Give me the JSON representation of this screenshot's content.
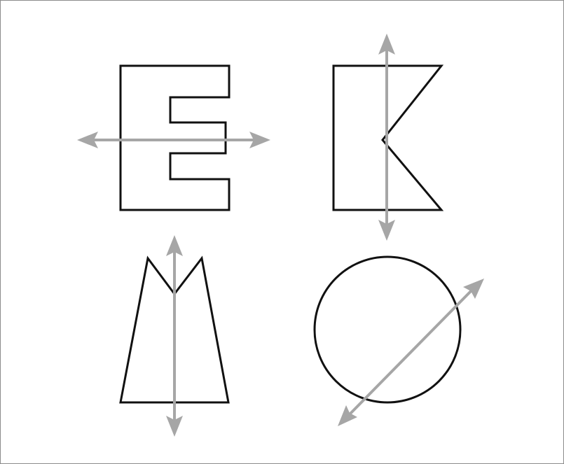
{
  "figure": {
    "description_colors": {
      "background": "#ffffff",
      "frame": "#8c8c8c",
      "shape_stroke": "#111111",
      "axis_line": "#a6a6a6"
    },
    "shapes": [
      {
        "id": "shape-e",
        "kind": "e-shape",
        "axis_orientation": "horizontal"
      },
      {
        "id": "shape-k",
        "kind": "k-shape",
        "axis_orientation": "vertical"
      },
      {
        "id": "shape-m",
        "kind": "m-shape",
        "axis_orientation": "vertical"
      },
      {
        "id": "shape-circle",
        "kind": "circle",
        "axis_orientation": "diagonal"
      }
    ]
  }
}
